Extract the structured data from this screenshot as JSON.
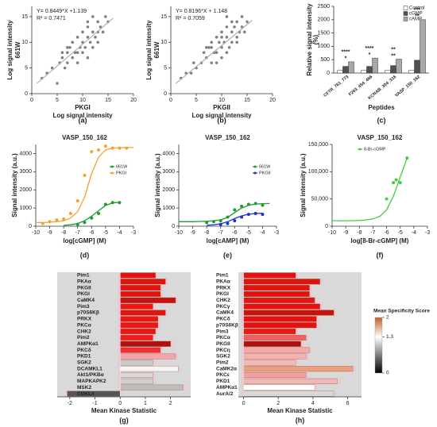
{
  "chart_data": [
    {
      "type": "scatter",
      "panel_label": "(a)",
      "x_label": "PKGI",
      "x_sublabel": "Log signal intensity",
      "y_label": "661W",
      "y_sublabel": "Log signal intensity",
      "annotations": [
        "Y= 0.8449*X +1.139",
        "R² = 0.7471"
      ],
      "color": "#808080",
      "x": [
        2,
        3,
        4,
        5,
        5.5,
        6,
        6.5,
        7,
        7,
        7.5,
        8,
        8,
        8.5,
        9,
        9,
        9.5,
        10,
        10,
        10.5,
        11,
        11,
        11.5,
        12,
        12,
        12.5,
        13,
        13,
        13.5,
        14,
        14.5,
        15,
        9,
        10,
        11,
        8,
        12,
        7,
        13,
        6,
        11
      ],
      "values": [
        3,
        4,
        5,
        2,
        6,
        7,
        5,
        8,
        6,
        9,
        7,
        10,
        8,
        8,
        11,
        9,
        10,
        12,
        9,
        11,
        13,
        10,
        12,
        9,
        11,
        12,
        14,
        13,
        12,
        15,
        14,
        6,
        8,
        14,
        10,
        15,
        9,
        10,
        8,
        7
      ],
      "trend": {
        "x": [
          1,
          16
        ],
        "values": [
          2,
          14.7
        ],
        "color": "#b0b0b0"
      },
      "xlim": [
        0,
        20
      ],
      "xticks": [
        0,
        5,
        10,
        15,
        20
      ],
      "ylim": [
        0,
        17
      ],
      "yticks": [
        0,
        5,
        10,
        15
      ]
    },
    {
      "type": "scatter",
      "panel_label": "(b)",
      "x_label": "PKGII",
      "x_sublabel": "Log signal intensity",
      "y_label": "661W",
      "y_sublabel": "Log signal intensity",
      "annotations": [
        "Y= 0.8196*X + 1.148",
        "R² = 0.7059"
      ],
      "color": "#808080",
      "x": [
        2,
        3,
        4,
        4.5,
        5,
        6,
        6.5,
        7,
        7.5,
        8,
        8,
        8.5,
        9,
        9,
        9.5,
        10,
        10,
        10.5,
        11,
        11,
        11.5,
        12,
        12,
        12.5,
        13,
        13,
        13.5,
        14,
        14,
        14.5,
        15,
        9,
        10,
        11,
        8,
        12,
        7,
        13,
        10,
        11
      ],
      "values": [
        3,
        4,
        4,
        6,
        5,
        6,
        8,
        7,
        9,
        6,
        9,
        8,
        8,
        11,
        10,
        9,
        12,
        10,
        11,
        13,
        9,
        12,
        10,
        13,
        11,
        14,
        12,
        13,
        15,
        12,
        14,
        6,
        7,
        15,
        10,
        14,
        9,
        10,
        11,
        8
      ],
      "trend": {
        "x": [
          1,
          16
        ],
        "values": [
          2,
          14.3
        ],
        "color": "#b0b0b0"
      },
      "xlim": [
        0,
        20
      ],
      "xticks": [
        0,
        5,
        10,
        15,
        20
      ],
      "ylim": [
        0,
        17
      ],
      "yticks": [
        0,
        5,
        10,
        15
      ]
    },
    {
      "type": "bar",
      "panel_label": "(c)",
      "x_label": "Peptides",
      "y_label": "Relative signal intensity",
      "y_sublabel": "(%)",
      "categories": [
        "CFTR_761_773",
        "F263_454_466",
        "KCNAB_304_316",
        "VASP_150_162"
      ],
      "series": [
        {
          "name": "Control",
          "color": "#ffffff",
          "values": [
            100,
            100,
            100,
            100
          ]
        },
        {
          "name": "cGMP",
          "color": "#505050",
          "values": [
            250,
            250,
            280,
            480
          ]
        },
        {
          "name": "cAMP",
          "color": "#a8a8a8",
          "values": [
            420,
            560,
            520,
            2000
          ]
        }
      ],
      "significance": [
        [
          "*",
          "****"
        ],
        [
          "*",
          "****"
        ],
        [
          "**",
          "**"
        ],
        [
          "**",
          "***"
        ]
      ],
      "ylim": [
        0,
        2500
      ],
      "yticks": [
        0,
        500,
        1000,
        1500,
        2000,
        2500
      ]
    },
    {
      "type": "dose",
      "panel_label": "(d)",
      "title": "VASP_150_162",
      "x_label": "log[cGMP] (M)",
      "y_label": "Signal intensity (a.u.)",
      "series": [
        {
          "name": "661W",
          "color": "#1e9c2e",
          "x": [
            -7,
            -6.5,
            -6,
            -5.5,
            -5,
            -4.5,
            -4
          ],
          "values": [
            100,
            200,
            450,
            700,
            1200,
            1300,
            1300
          ],
          "fit_x": [
            -8,
            -7.5,
            -7,
            -6.5,
            -6,
            -5.5,
            -5,
            -4.5,
            -4
          ],
          "fit_values": [
            50,
            80,
            150,
            300,
            550,
            850,
            1150,
            1280,
            1320
          ]
        },
        {
          "name": "PKGI",
          "color": "#f5a030",
          "x": [
            -9.5,
            -9,
            -8.5,
            -8,
            -7.5,
            -7,
            -6.5,
            -6,
            -5.5,
            -5,
            -4.5,
            -4,
            -3.5
          ],
          "values": [
            150,
            250,
            350,
            400,
            700,
            1400,
            2800,
            4100,
            4200,
            4400,
            4300,
            4300,
            4300
          ],
          "fit_x": [
            -10,
            -9.5,
            -9,
            -8.5,
            -8,
            -7.5,
            -7,
            -6.5,
            -6,
            -5.5,
            -5,
            -4.5,
            -4,
            -3.5,
            -3
          ],
          "fit_values": [
            200,
            200,
            220,
            250,
            300,
            450,
            800,
            1600,
            2900,
            3800,
            4200,
            4300,
            4320,
            4330,
            4330
          ]
        }
      ],
      "xlim": [
        -10,
        -3
      ],
      "xticks": [
        -10,
        -9,
        -8,
        -7,
        -6,
        -5,
        -4,
        -3
      ],
      "ylim": [
        0,
        4500
      ],
      "yticks": [
        0,
        1000,
        2000,
        3000,
        4000
      ]
    },
    {
      "type": "dose",
      "panel_label": "(e)",
      "title": "VASP_150_162",
      "x_label": "log[cAMP] (M)",
      "y_label": "Signal intensity (a.u.)",
      "series": [
        {
          "name": "661W",
          "color": "#1e9c2e",
          "x": [
            -8,
            -7.5,
            -7,
            -6.5,
            -6,
            -5.5,
            -5,
            -4.5,
            -4
          ],
          "values": [
            200,
            250,
            300,
            500,
            900,
            1100,
            1200,
            1250,
            1150
          ],
          "fit_x": [
            -10,
            -9.5,
            -9,
            -8.5,
            -8,
            -7.5,
            -7,
            -6.5,
            -6,
            -5.5,
            -5,
            -4.5,
            -4,
            -3.5
          ],
          "fit_values": [
            250,
            250,
            250,
            260,
            270,
            300,
            350,
            480,
            750,
            1000,
            1150,
            1220,
            1240,
            1250
          ]
        },
        {
          "name": "PKGII",
          "color": "#2233cc",
          "x": [
            -7,
            -6.5,
            -6,
            -5.5,
            -5,
            -4.5,
            -4
          ],
          "values": [
            100,
            150,
            300,
            500,
            650,
            700,
            650
          ],
          "fit_x": [
            -8,
            -7.5,
            -7,
            -6.5,
            -6,
            -5.5,
            -5,
            -4.5,
            -4
          ],
          "fit_values": [
            50,
            80,
            130,
            250,
            420,
            570,
            660,
            700,
            710
          ]
        }
      ],
      "xlim": [
        -10,
        -3
      ],
      "xticks": [
        -10,
        -9,
        -8,
        -7,
        -6,
        -5,
        -4,
        -3
      ],
      "ylim": [
        0,
        4500
      ],
      "yticks": [
        0,
        1000,
        2000,
        3000,
        4000
      ]
    },
    {
      "type": "dose",
      "panel_label": "(f)",
      "title": "VASP_150_162",
      "x_label": "log[8-Br-cGMP] (M)",
      "y_label": "Signal intensity (a.u.)",
      "series": [
        {
          "name": "8-Br-cGMP",
          "color": "#44cc44",
          "x": [
            -6,
            -5.5,
            -5.3,
            -5,
            -4.5
          ],
          "values": [
            50000,
            80000,
            85000,
            80000,
            125000
          ],
          "fit_x": [
            -10,
            -9.5,
            -9,
            -8.5,
            -8,
            -7.5,
            -7,
            -6.5,
            -6,
            -5.5,
            -5,
            -4.5
          ],
          "fit_values": [
            10000,
            10000,
            10000,
            10200,
            10500,
            11500,
            13500,
            18000,
            30000,
            55000,
            90000,
            125000
          ]
        }
      ],
      "xlim": [
        -10,
        -3
      ],
      "xticks": [
        -10,
        -9,
        -8,
        -7,
        -6,
        -5,
        -4,
        -3
      ],
      "ylim": [
        0,
        150000
      ],
      "yticks": [
        0,
        {
          "value": 50000,
          "label": "50,000"
        },
        {
          "value": 100000,
          "label": "100,000"
        },
        {
          "value": 150000,
          "label": "150,000"
        }
      ]
    },
    {
      "type": "hbar",
      "panel_label": "(g)",
      "x_label": "Mean Kinase Statistic",
      "categories": [
        "Pim1",
        "PKAα",
        "PKGII",
        "PKGI",
        "CaMK4",
        "Pim3",
        "p70S6Kβ",
        "PRKX",
        "PKCα",
        "CHK2",
        "Pim2",
        "AMPKα1",
        "PKCδ",
        "PKD1",
        "SGK2",
        "DCAMKL1",
        "Akt1/PKBα",
        "MAPKAPK2",
        "MSK2",
        "CDKL3"
      ],
      "values": [
        1.4,
        1.8,
        1.6,
        1.6,
        2.2,
        1.3,
        1.8,
        1.5,
        1.5,
        1.4,
        1.3,
        2.0,
        1.6,
        2.2,
        1.3,
        2.3,
        1.3,
        1.3,
        2.5,
        -2.1
      ],
      "colors": [
        "#e8100f",
        "#d8150f",
        "#e8100f",
        "#e8100f",
        "#c8120f",
        "#f01512",
        "#e0150f",
        "#ee1612",
        "#ee1612",
        "#ea1512",
        "#f01c18",
        "#b01010",
        "#f03030",
        "#f4a3a8",
        "#c8c8c8",
        "#f5f5f5",
        "#d8d8d8",
        "#d0d0d0",
        "#bdbdbd",
        "#555555"
      ],
      "xlim": [
        -2.5,
        2.8
      ],
      "xticks": [
        -2,
        -1,
        0,
        1,
        2
      ]
    },
    {
      "type": "hbar",
      "panel_label": "(h)",
      "x_label": "Mean Kinase Statistic",
      "categories": [
        "Pim1",
        "PKAα",
        "PRKX",
        "PKGI",
        "CHK2",
        "PKCγ",
        "CaMK4",
        "PKCδ",
        "p70S6Kβ",
        "Pim3",
        "PKCα",
        "PKGII",
        "PKCη",
        "SGK2",
        "Pim2",
        "CaMK2α",
        "PKCε",
        "PKD1",
        "AMPKα1",
        "AurA/2"
      ],
      "values": [
        3.0,
        4.4,
        3.8,
        3.8,
        4.1,
        4.4,
        5.2,
        4.2,
        4.2,
        3.0,
        3.6,
        3.3,
        3.8,
        3.6,
        3.0,
        6.3,
        3.6,
        5.4,
        4.1,
        5.2
      ],
      "colors": [
        "#e8100f",
        "#d8150f",
        "#e8100f",
        "#e8100f",
        "#e41510",
        "#e8100f",
        "#c8120f",
        "#e8100f",
        "#e8100f",
        "#ee1612",
        "#f06060",
        "#b01010",
        "#f4a8a8",
        "#f4b0b0",
        "#f4b8b8",
        "#e8a080",
        "#f4a0a0",
        "#f0b8b8",
        "#ffffff",
        "#d8d8d8"
      ],
      "xlim": [
        -0.3,
        6.8
      ],
      "xticks": [
        0,
        2,
        4,
        6
      ],
      "colorbar": {
        "title": "Mean Specificity Score",
        "range": [
          0,
          2
        ],
        "ticks": [
          0,
          1.3,
          2
        ],
        "colors": [
          "#000000",
          "#ffffff",
          "#c0602a"
        ]
      }
    }
  ]
}
